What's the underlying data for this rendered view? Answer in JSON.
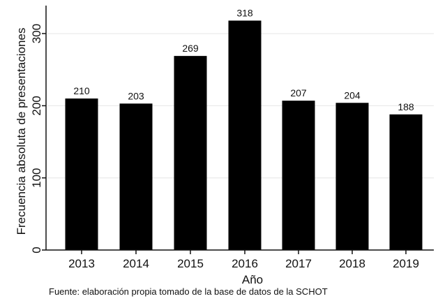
{
  "chart_data": {
    "type": "bar",
    "categories": [
      "2013",
      "2014",
      "2015",
      "2016",
      "2017",
      "2018",
      "2019"
    ],
    "values": [
      210,
      203,
      269,
      318,
      207,
      204,
      188
    ],
    "data_labels": [
      "210",
      "203",
      "269",
      "318",
      "207",
      "204",
      "188"
    ],
    "title": "",
    "xlabel": "Año",
    "ylabel": "Frecuencia absoluta de presentaciones",
    "ylim": [
      0,
      340
    ],
    "yticks": [
      0,
      100,
      200,
      300
    ],
    "ytick_labels": [
      "0",
      "100",
      "200",
      "300"
    ],
    "grid": true,
    "bar_color": "#000000",
    "grid_color": "#e6e6e6"
  },
  "source_note": "Fuente: elaboración propia tomado de la base de datos de la SCHOT"
}
